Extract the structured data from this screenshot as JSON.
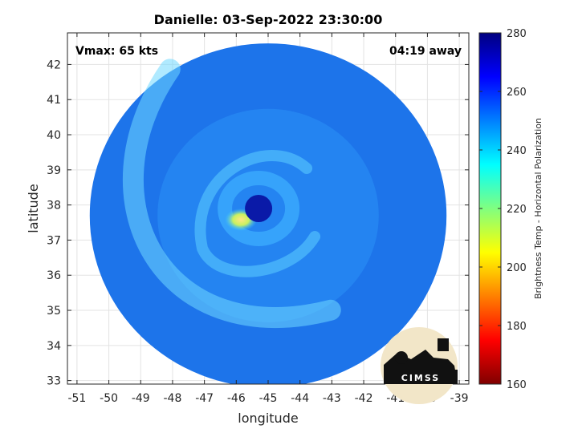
{
  "chart_data": {
    "type": "heatmap",
    "title": "Danielle: 03-Sep-2022 23:30:00",
    "xlabel": "longitude",
    "ylabel": "latitude",
    "xlim": [
      -51.3,
      -38.7
    ],
    "ylim": [
      32.9,
      42.9
    ],
    "xticks": [
      -51,
      -50,
      -49,
      -48,
      -47,
      -46,
      -45,
      -44,
      -43,
      -42,
      -41,
      -40,
      -39
    ],
    "yticks": [
      33,
      34,
      35,
      36,
      37,
      38,
      39,
      40,
      41,
      42
    ],
    "grid": true,
    "annotations": {
      "vmax": "Vmax: 65 kts",
      "away": "04:19 away"
    },
    "colorbar": {
      "label": "Brightness Temp - Horizontal Polarization",
      "range": [
        160,
        280
      ],
      "ticks": [
        160,
        180,
        200,
        220,
        240,
        260,
        280
      ],
      "colormap": "jet"
    },
    "storm_center": {
      "lon": -45.3,
      "lat": 37.9
    },
    "swath_center": {
      "lon": -45.0,
      "lat": 37.7
    },
    "swath_radius_deg": {
      "lon": 5.6,
      "lat": 4.9
    },
    "logo_text": "CIMSS"
  }
}
